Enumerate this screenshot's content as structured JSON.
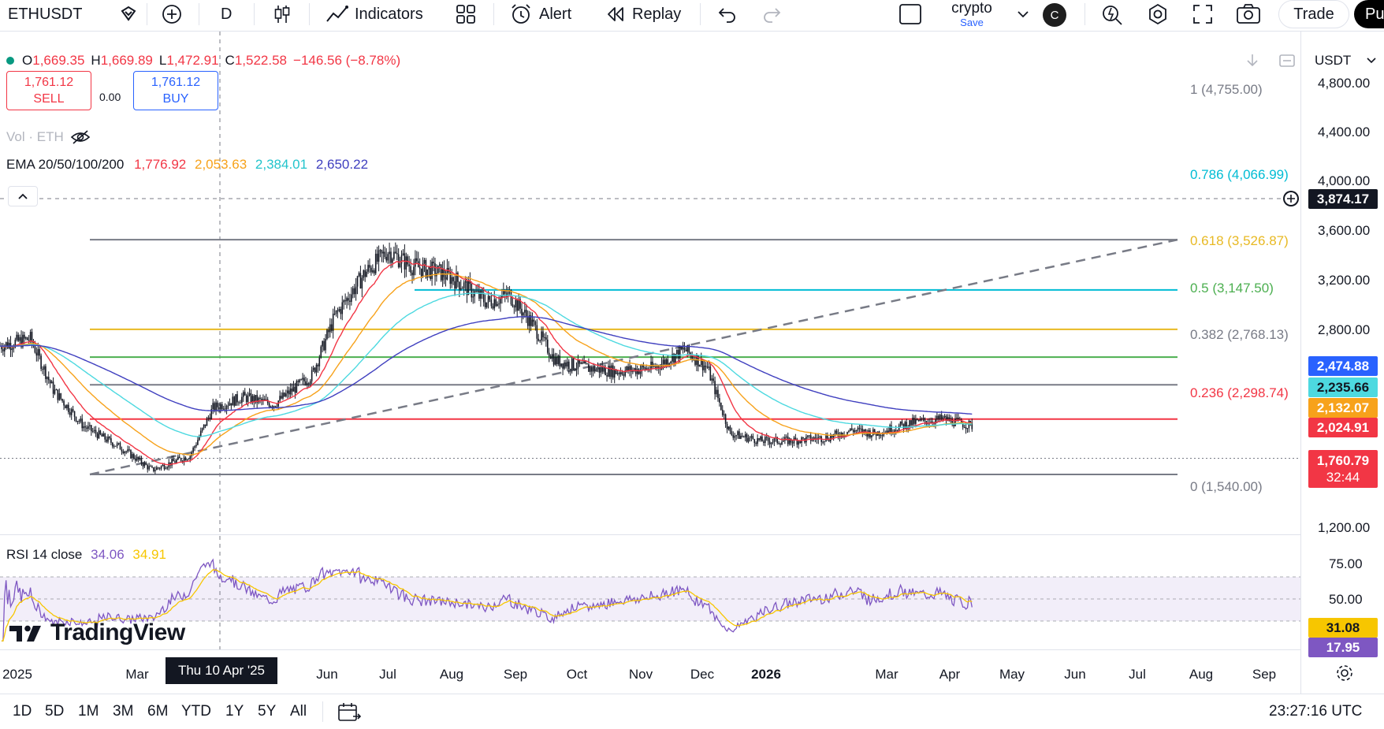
{
  "toolbar": {
    "symbol": "ETHUSDT",
    "interval": "D",
    "indicators_label": "Indicators",
    "alert_label": "Alert",
    "replay_label": "Replay",
    "layout_name": "crypto",
    "layout_sub": "Save",
    "avatar_letter": "C",
    "trade_label": "Trade",
    "publish_label": "Pu"
  },
  "legend": {
    "open_label": "O",
    "open": "1,669.35",
    "high_label": "H",
    "high": "1,669.89",
    "low_label": "L",
    "low": "1,472.91",
    "close_label": "C",
    "close": "1,522.58",
    "change": "−146.56 (−8.78%)"
  },
  "order": {
    "sell_price": "1,761.12",
    "sell_label": "SELL",
    "spread": "0.00",
    "buy_price": "1,761.12",
    "buy_label": "BUY"
  },
  "volume_legend": "Vol · ETH",
  "ema": {
    "label": "EMA 20/50/100/200",
    "v20": "1,776.92",
    "v50": "2,053.63",
    "v100": "2,384.01",
    "v200": "2,650.22",
    "colors": {
      "ema20": "#f23645",
      "ema50": "#f7a21b",
      "ema100": "#4dd9e0",
      "ema200": "#3f3fbf"
    }
  },
  "rsi": {
    "label": "RSI 14 close",
    "value": "34.06",
    "ma": "34.91"
  },
  "logo_text": "TradingView",
  "currency": "USDT",
  "price_axis": [
    "4,800.00",
    "4,400.00",
    "4,000.00",
    "3,600.00",
    "3,200.00",
    "2,800.00",
    "1,200.00"
  ],
  "rsi_axis": [
    "75.00",
    "50.00"
  ],
  "tags": {
    "crosshair": "3,874.17",
    "ema200": "2,474.88",
    "ema100": "2,235.66",
    "ema50": "2,132.07",
    "ema20": "2,024.91",
    "last": "1,760.79",
    "countdown": "32:44",
    "rsi_ma": "31.08",
    "rsi": "17.95"
  },
  "fib_levels": [
    {
      "label": "1 (4,755.00)",
      "color": "#787b86"
    },
    {
      "label": "0.786 (4,066.99)",
      "color": "#00bcd4"
    },
    {
      "label": "0.618 (3,526.87)",
      "color": "#e8b923"
    },
    {
      "label": "0.5 (3,147.50)",
      "color": "#4caf50"
    },
    {
      "label": "0.382 (2,768.13)",
      "color": "#787b86"
    },
    {
      "label": "0.236 (2,298.74)",
      "color": "#f23645"
    },
    {
      "label": "0 (1,540.00)",
      "color": "#787b86"
    }
  ],
  "time_axis": [
    "2025",
    "Mar",
    "Jun",
    "Jul",
    "Aug",
    "Sep",
    "Oct",
    "Nov",
    "Dec",
    "2026",
    "Mar",
    "Apr",
    "May",
    "Jun",
    "Jul",
    "Aug",
    "Sep"
  ],
  "crosshair_date": "Thu 10 Apr '25",
  "ranges": [
    "1D",
    "5D",
    "1M",
    "3M",
    "6M",
    "YTD",
    "1Y",
    "5Y",
    "All"
  ],
  "clock": "23:27:16 UTC",
  "chart_data": {
    "type": "candlestick",
    "x": [
      "2025-01",
      "2025-02",
      "2025-03",
      "2025-04",
      "2025-05",
      "2025-06",
      "2025-07",
      "2025-08",
      "2025-09",
      "2025-10",
      "2025-11",
      "2025-12",
      "2026-01",
      "2026-02",
      "2026-03",
      "2026-04",
      "2026-05",
      "2026-06"
    ],
    "close": [
      3300,
      2250,
      1820,
      1800,
      2550,
      2500,
      3700,
      4400,
      4150,
      3850,
      2950,
      2970,
      3000,
      2000,
      2100,
      2250,
      2050,
      1520
    ],
    "ylim": [
      1200,
      4900
    ],
    "rsi_ylim": [
      0,
      100
    ]
  }
}
